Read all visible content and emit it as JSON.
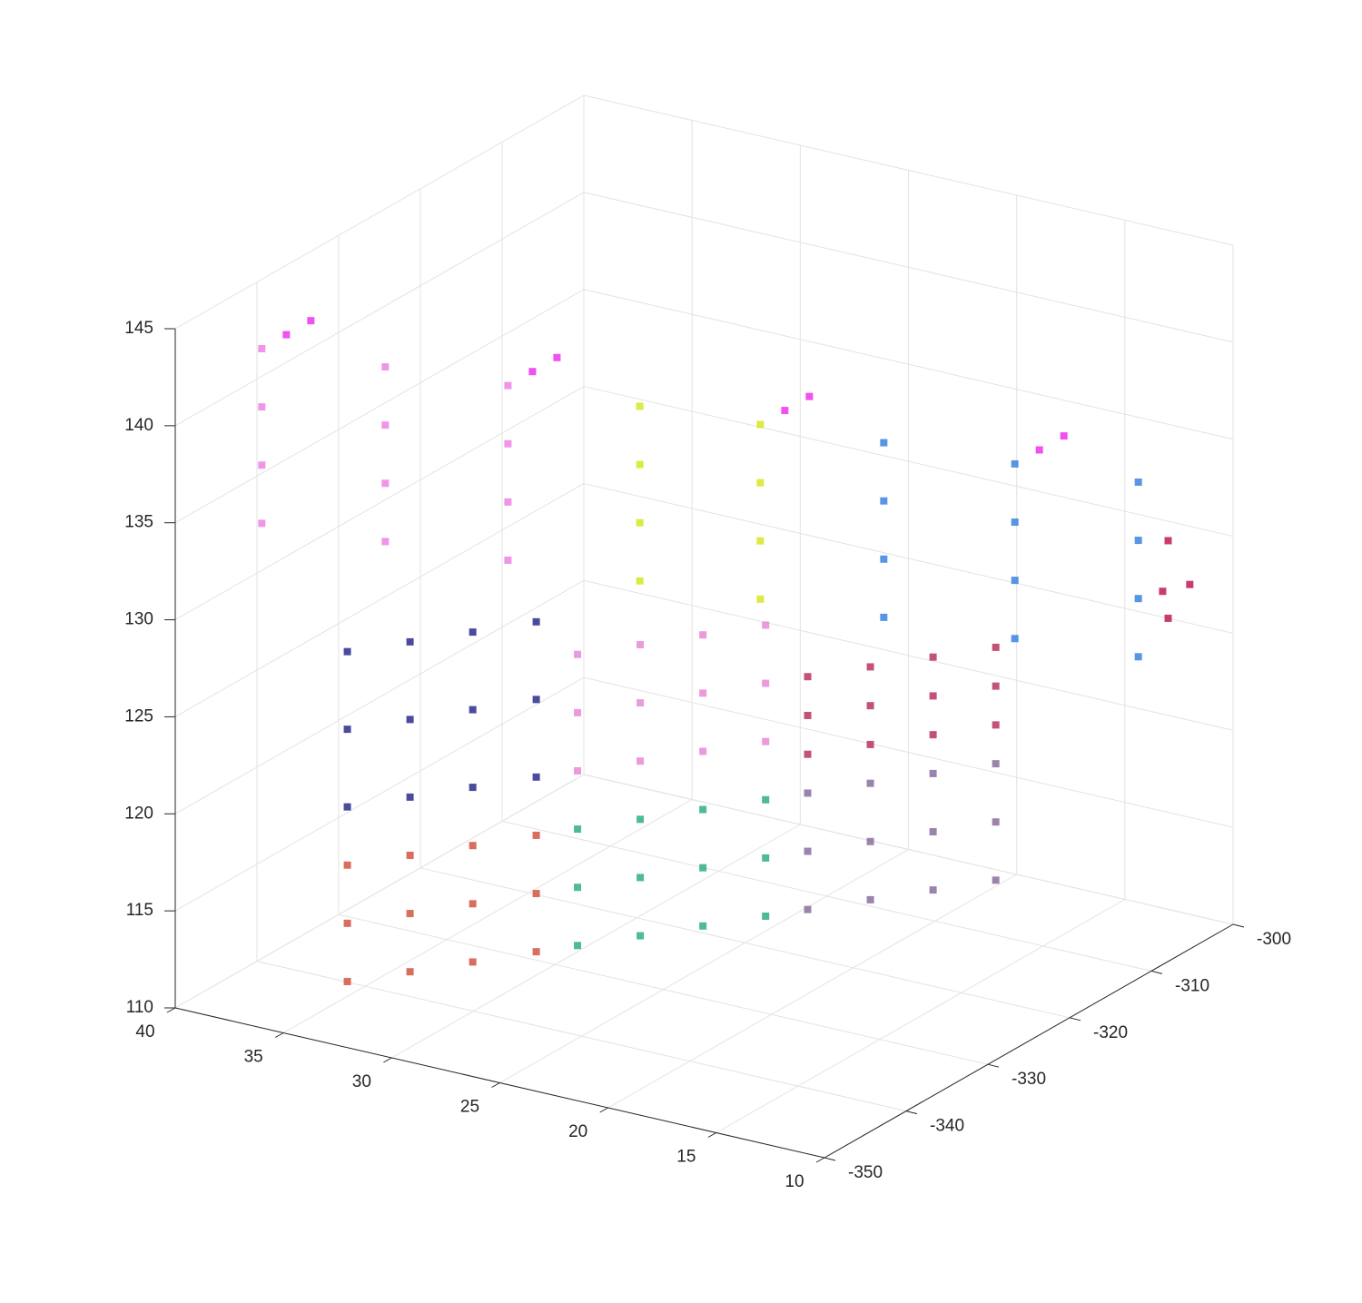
{
  "chart_data": {
    "type": "scatter3d",
    "xlim": [
      10,
      40
    ],
    "ylim": [
      -350,
      -300
    ],
    "zlim": [
      110,
      145
    ],
    "xticks": [
      10,
      15,
      20,
      25,
      30,
      35,
      40
    ],
    "yticks": [
      -350,
      -340,
      -330,
      -320,
      -310,
      -300
    ],
    "zticks": [
      110,
      115,
      120,
      125,
      130,
      135,
      140,
      145
    ],
    "grid": true,
    "series": [
      {
        "color": "#d2553f",
        "x": [
          32.5,
          31,
          29.5,
          28,
          32.5,
          31,
          29.5,
          28,
          32.5,
          31,
          29.5,
          28
        ],
        "y": [
          -348.8,
          -345.1,
          -341.4,
          -337.6,
          -348.8,
          -345.1,
          -341.4,
          -337.6,
          -348.8,
          -345.1,
          -341.4,
          -337.6
        ],
        "z": [
          113,
          113,
          113,
          113,
          116,
          116,
          116,
          116,
          119,
          119,
          119,
          119
        ]
      },
      {
        "color": "#2c2c8c",
        "x": [
          32.5,
          31,
          29.5,
          28,
          32.5,
          31,
          29.5,
          28,
          32.5,
          31,
          29.5,
          28
        ],
        "y": [
          -348.8,
          -345.1,
          -341.4,
          -337.6,
          -348.8,
          -345.1,
          -341.4,
          -337.6,
          -348.8,
          -345.1,
          -341.4,
          -337.6
        ],
        "z": [
          122,
          122,
          122,
          122,
          126,
          126,
          126,
          126,
          130,
          130,
          130,
          130
        ]
      },
      {
        "color": "#2fae8a",
        "x": [
          27,
          25.5,
          24,
          22.5,
          27,
          25.5,
          24,
          22.5,
          27,
          25.5,
          24,
          22.5
        ],
        "y": [
          -335.2,
          -331.5,
          -327.8,
          -324.1,
          -335.2,
          -331.5,
          -327.8,
          -324.1,
          -335.2,
          -331.5,
          -327.8,
          -324.1
        ],
        "z": [
          113,
          113,
          113,
          113,
          116,
          116,
          116,
          116,
          119,
          119,
          119,
          119
        ]
      },
      {
        "color": "#e58ad6",
        "x": [
          27,
          25.5,
          24,
          22.5,
          27,
          25.5,
          24,
          22.5,
          27,
          25.5,
          24,
          22.5
        ],
        "y": [
          -335.2,
          -331.5,
          -327.8,
          -324.1,
          -335.2,
          -331.5,
          -327.8,
          -324.1,
          -335.2,
          -331.5,
          -327.8,
          -324.1
        ],
        "z": [
          122,
          122,
          122,
          122,
          125,
          125,
          125,
          125,
          128,
          128,
          128,
          128
        ]
      },
      {
        "color": "#8a6e9e",
        "x": [
          21.5,
          20,
          18.5,
          17,
          21.5,
          20,
          18.5,
          17,
          21.5,
          20,
          18.5,
          17
        ],
        "y": [
          -321.6,
          -317.9,
          -314.2,
          -310.5,
          -321.6,
          -317.9,
          -314.2,
          -310.5,
          -321.6,
          -317.9,
          -314.2,
          -310.5
        ],
        "z": [
          113,
          113,
          113,
          113,
          116,
          116,
          116,
          116,
          119,
          119,
          119,
          119
        ]
      },
      {
        "color": "#b8355a",
        "x": [
          21.5,
          20,
          18.5,
          17,
          21.5,
          20,
          18.5,
          17,
          21.5,
          20,
          18.5,
          17
        ],
        "y": [
          -321.6,
          -317.9,
          -314.2,
          -310.5,
          -321.6,
          -317.9,
          -314.2,
          -310.5,
          -321.6,
          -317.9,
          -314.2,
          -310.5
        ],
        "z": [
          121,
          121,
          121,
          121,
          123,
          123,
          123,
          123,
          125,
          125,
          125,
          125
        ]
      },
      {
        "color": "#ee82e6",
        "x": [
          36,
          36,
          36,
          36,
          32.9,
          32.9,
          32.9,
          32.9,
          29.8,
          29.8,
          29.8,
          29.8
        ],
        "y": [
          -350,
          -350,
          -350,
          -350,
          -343.1,
          -343.1,
          -343.1,
          -343.1,
          -336.3,
          -336.3,
          -336.3,
          -336.3
        ],
        "z": [
          145,
          142,
          139,
          136,
          143.2,
          140.2,
          137.2,
          134.2,
          141.4,
          138.4,
          135.4,
          132.4
        ]
      },
      {
        "color": "#d4e823",
        "x": [
          26.5,
          26.5,
          26.5,
          26.5,
          23.5,
          23.5,
          23.5,
          23.5
        ],
        "y": [
          -328.9,
          -328.9,
          -328.9,
          -328.9,
          -322.1,
          -322.1,
          -322.1,
          -322.1
        ],
        "z": [
          139.4,
          136.4,
          133.4,
          130.4,
          137.6,
          134.6,
          131.6,
          128.6
        ]
      },
      {
        "color": "#3b82e0",
        "x": [
          20.4,
          20.4,
          20.4,
          20.4,
          17.1,
          17.1,
          17.1,
          17.1,
          14,
          14,
          14,
          14
        ],
        "y": [
          -315.2,
          -315.2,
          -315.2,
          -315.2,
          -307.9,
          -307.9,
          -307.9,
          -307.9,
          -301,
          -301,
          -301,
          -301
        ],
        "z": [
          135.8,
          132.8,
          129.8,
          126.8,
          133.8,
          130.8,
          127.8,
          124.8,
          132,
          129,
          126,
          123
        ]
      },
      {
        "color": "#f032f0",
        "x": [
          36,
          29.8,
          23.5,
          17.1,
          36,
          29.8,
          23.5,
          17.1
        ],
        "y": [
          -347,
          -333.3,
          -319.1,
          -304.9,
          -344,
          -330.3,
          -316.1,
          -301.9
        ],
        "z": [
          145,
          141.4,
          137.6,
          133.8,
          145,
          141.4,
          137.6,
          133.8
        ]
      },
      {
        "color": "#c2185b",
        "x": [
          13,
          12,
          13,
          12.5
        ],
        "y": [
          -300,
          -300,
          -300,
          -302
        ],
        "z": [
          129,
          127,
          125,
          127
        ]
      }
    ]
  }
}
